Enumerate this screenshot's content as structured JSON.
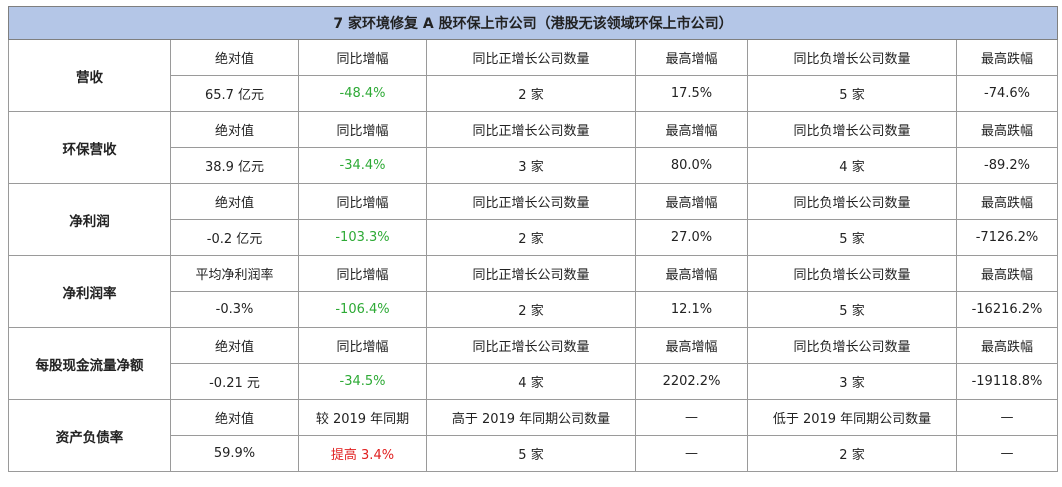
{
  "title": "7 家环境修复 A 股环保上市公司（港股无该领域环保上市公司）",
  "colors": {
    "header_bg": "#b4c6e7",
    "negative_change": "#2eaa36",
    "positive_change": "#e02020",
    "border": "#9a9a9a"
  },
  "rows": [
    {
      "metric": "营收",
      "headers": [
        "绝对值",
        "同比增幅",
        "同比正增长公司数量",
        "最高增幅",
        "同比负增长公司数量",
        "最高跌幅"
      ],
      "values": [
        "65.7 亿元",
        "-48.4%",
        "2 家",
        "17.5%",
        "5 家",
        "-74.6%"
      ],
      "change_color": "green"
    },
    {
      "metric": "环保营收",
      "headers": [
        "绝对值",
        "同比增幅",
        "同比正增长公司数量",
        "最高增幅",
        "同比负增长公司数量",
        "最高跌幅"
      ],
      "values": [
        "38.9 亿元",
        "-34.4%",
        "3 家",
        "80.0%",
        "4 家",
        "-89.2%"
      ],
      "change_color": "green"
    },
    {
      "metric": "净利润",
      "headers": [
        "绝对值",
        "同比增幅",
        "同比正增长公司数量",
        "最高增幅",
        "同比负增长公司数量",
        "最高跌幅"
      ],
      "values": [
        "-0.2 亿元",
        "-103.3%",
        "2 家",
        "27.0%",
        "5 家",
        "-7126.2%"
      ],
      "change_color": "green"
    },
    {
      "metric": "净利润率",
      "headers": [
        "平均净利润率",
        "同比增幅",
        "同比正增长公司数量",
        "最高增幅",
        "同比负增长公司数量",
        "最高跌幅"
      ],
      "values": [
        "-0.3%",
        "-106.4%",
        "2 家",
        "12.1%",
        "5 家",
        "-16216.2%"
      ],
      "change_color": "green"
    },
    {
      "metric": "每股现金流量净额",
      "headers": [
        "绝对值",
        "同比增幅",
        "同比正增长公司数量",
        "最高增幅",
        "同比负增长公司数量",
        "最高跌幅"
      ],
      "values": [
        "-0.21 元",
        "-34.5%",
        "4 家",
        "2202.2%",
        "3 家",
        "-19118.8%"
      ],
      "change_color": "green"
    },
    {
      "metric": "资产负债率",
      "headers": [
        "绝对值",
        "较 2019 年同期",
        "高于 2019 年同期公司数量",
        "—",
        "低于 2019 年同期公司数量",
        "—"
      ],
      "values": [
        "59.9%",
        "提高 3.4%",
        "5 家",
        "—",
        "2 家",
        "—"
      ],
      "change_color": "red"
    }
  ]
}
